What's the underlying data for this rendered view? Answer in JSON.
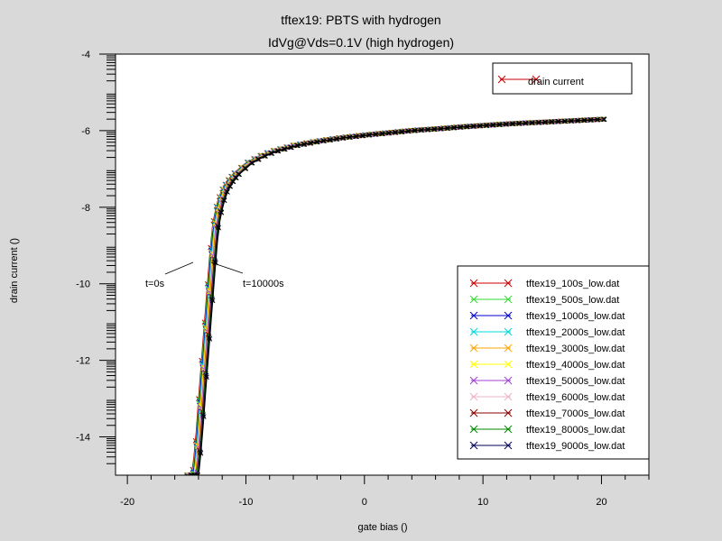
{
  "chart_data": {
    "type": "line",
    "title": "tftex19: PBTS with hydrogen",
    "subtitle": "IdVg@Vds=0.1V (high hydrogen)",
    "xlabel": "gate bias ()",
    "ylabel": "drain current ()",
    "xlim": [
      -21,
      24
    ],
    "ylim": [
      -15,
      -4
    ],
    "xticks": [
      -20,
      -10,
      0,
      10,
      20
    ],
    "yticks": [
      -4,
      -6,
      -8,
      -10,
      -12,
      -14
    ],
    "grid": false,
    "legend_top": {
      "position": "top-right",
      "entries": [
        {
          "name": "drain current",
          "color": "#cc0000"
        }
      ]
    },
    "legend_main": {
      "position": "bottom-right"
    },
    "annotations": [
      {
        "text": "t=0s"
      },
      {
        "text": "t=10000s"
      }
    ],
    "reference_curve": {
      "name": "drain current",
      "color": "#cc0000",
      "x": [
        -14.5,
        -14.2,
        -14.0,
        -13.7,
        -13.4,
        -13.1,
        -12.8,
        -12.4,
        -12.0,
        -11.5,
        -11.0,
        -10.0,
        -9.0,
        -8.0,
        -6.0,
        -4.0,
        -2.0,
        0.0,
        2.0,
        4.0,
        6.0,
        8.0,
        10.0,
        12.0,
        14.0,
        16.0,
        18.0,
        20.0
      ],
      "y": [
        -15.0,
        -14.1,
        -13.2,
        -12.0,
        -10.8,
        -9.6,
        -8.5,
        -7.9,
        -7.55,
        -7.3,
        -7.12,
        -6.85,
        -6.68,
        -6.55,
        -6.38,
        -6.27,
        -6.18,
        -6.11,
        -6.05,
        -5.99,
        -5.95,
        -5.9,
        -5.86,
        -5.82,
        -5.79,
        -5.76,
        -5.73,
        -5.7
      ]
    },
    "series": [
      {
        "name": "tftex19_100s_low.dat",
        "color": "#cc0000",
        "shift": -0.05
      },
      {
        "name": "tftex19_500s_low.dat",
        "color": "#33dd33",
        "shift": 0.0
      },
      {
        "name": "tftex19_1000s_low.dat",
        "color": "#0000cc",
        "shift": 0.05
      },
      {
        "name": "tftex19_2000s_low.dat",
        "color": "#00d8d8",
        "shift": 0.1
      },
      {
        "name": "tftex19_3000s_low.dat",
        "color": "#ffa500",
        "shift": 0.15
      },
      {
        "name": "tftex19_4000s_low.dat",
        "color": "#ffff00",
        "shift": 0.2
      },
      {
        "name": "tftex19_5000s_low.dat",
        "color": "#a040d0",
        "shift": 0.25
      },
      {
        "name": "tftex19_6000s_low.dat",
        "color": "#f0b0c8",
        "shift": 0.3
      },
      {
        "name": "tftex19_7000s_low.dat",
        "color": "#8b0000",
        "shift": 0.35
      },
      {
        "name": "tftex19_8000s_low.dat",
        "color": "#008800",
        "shift": 0.4
      },
      {
        "name": "tftex19_9000s_low.dat",
        "color": "#000055",
        "shift": 0.45
      }
    ],
    "final_curve": {
      "color": "#000000",
      "shift": 0.5
    }
  }
}
